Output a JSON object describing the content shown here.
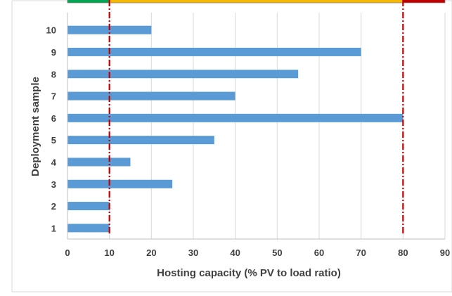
{
  "chart_data": {
    "type": "bar",
    "orientation": "horizontal",
    "title": "",
    "xlabel": "Hosting capacity (% PV to load ratio)",
    "ylabel": "Deployment sample",
    "categories": [
      "1",
      "2",
      "3",
      "4",
      "5",
      "6",
      "7",
      "8",
      "9",
      "10"
    ],
    "values": [
      10,
      10,
      25,
      15,
      35,
      80,
      40,
      55,
      70,
      20
    ],
    "xlim": [
      0,
      90
    ],
    "xticks": [
      0,
      10,
      20,
      30,
      40,
      50,
      60,
      70,
      80,
      90
    ],
    "grid": "vertical",
    "legend": "none",
    "reference_lines": [
      {
        "x": 10,
        "color": "#c00000",
        "style": "dash-dot"
      },
      {
        "x": 80,
        "color": "#c00000",
        "style": "dash-dot"
      }
    ],
    "top_band": [
      {
        "from": 0,
        "to": 10,
        "color": "#00a651"
      },
      {
        "from": 10,
        "to": 80,
        "color": "#f6b800"
      },
      {
        "from": 80,
        "to": 90,
        "color": "#c00000"
      }
    ],
    "colors": {
      "bar": "#5b9bd5",
      "grid": "#d9d9d9",
      "axis": "#bfbfbf",
      "text": "#404040"
    }
  }
}
